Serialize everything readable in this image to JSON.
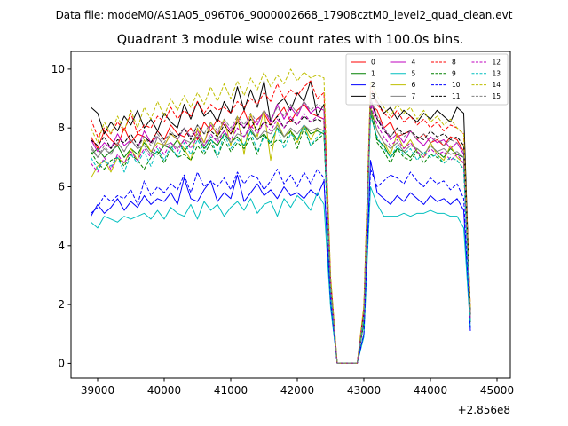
{
  "chart_data": {
    "type": "line",
    "suptitle": "Data file: modeM0/AS1A05_096T06_9000002668_17908cztM0_level2_quad_clean.evt",
    "title": "Quadrant 3 module wise count rates with 100.0s bins.",
    "xlabel": "",
    "ylabel": "",
    "x_offset_label": "+2.856e8",
    "xlim": [
      38600,
      45200
    ],
    "ylim": [
      -0.5,
      10.6
    ],
    "xticks": [
      39000,
      40000,
      41000,
      42000,
      43000,
      44000,
      45000
    ],
    "xtick_labels": [
      "39000",
      "40000",
      "41000",
      "42000",
      "43000",
      "44000",
      "45000"
    ],
    "yticks": [
      0,
      2,
      4,
      6,
      8,
      10
    ],
    "ytick_labels": [
      "0",
      "2",
      "4",
      "6",
      "8",
      "10"
    ],
    "grid": false,
    "legend": {
      "location": "upper-right",
      "columns": 4
    },
    "x_start": 38900,
    "x_step": 100,
    "series": [
      {
        "name": "0",
        "color": "#ff0000",
        "dashed": false,
        "values": [
          7.7,
          7.3,
          7.9,
          7.6,
          7.4,
          8.0,
          7.5,
          7.8,
          7.7,
          7.5,
          7.9,
          7.6,
          8.1,
          7.8,
          7.7,
          8.0,
          7.6,
          8.2,
          7.9,
          8.3,
          8.1,
          7.8,
          8.2,
          8.6,
          8.0,
          8.3,
          8.5,
          8.1,
          8.4,
          8.7,
          8.2,
          8.6,
          8.8,
          8.5,
          8.4,
          8.3,
          2.5,
          0.0,
          0.0,
          0.0,
          0.0,
          1.5,
          8.8,
          8.6,
          8.0,
          8.2,
          7.7,
          7.8,
          7.9,
          7.6,
          7.8,
          7.5,
          7.6,
          7.4,
          7.7,
          7.6,
          7.2,
          1.6
        ]
      },
      {
        "name": "1",
        "color": "#008000",
        "dashed": false,
        "values": [
          7.1,
          7.3,
          7.0,
          7.2,
          7.4,
          7.0,
          7.3,
          7.1,
          7.5,
          7.2,
          7.1,
          7.4,
          7.3,
          7.6,
          7.2,
          7.5,
          7.7,
          7.3,
          7.6,
          7.4,
          7.8,
          7.5,
          7.7,
          7.4,
          7.9,
          7.6,
          7.8,
          7.5,
          8.0,
          7.7,
          7.9,
          7.6,
          8.1,
          7.8,
          7.9,
          7.8,
          2.4,
          0.0,
          0.0,
          0.0,
          0.0,
          1.4,
          8.5,
          7.6,
          7.4,
          7.0,
          7.3,
          7.2,
          7.0,
          7.3,
          7.1,
          7.4,
          7.2,
          7.0,
          7.3,
          7.1,
          7.0,
          1.4
        ]
      },
      {
        "name": "2",
        "color": "#0000ff",
        "dashed": false,
        "values": [
          5.0,
          5.4,
          5.1,
          5.3,
          5.6,
          5.2,
          5.5,
          5.3,
          5.7,
          5.4,
          5.6,
          5.5,
          5.8,
          5.4,
          6.3,
          5.6,
          5.5,
          5.9,
          6.2,
          5.5,
          5.8,
          5.6,
          6.4,
          5.5,
          5.8,
          6.1,
          5.7,
          5.9,
          5.6,
          6.0,
          5.7,
          5.8,
          5.6,
          5.9,
          5.7,
          6.2,
          2.0,
          0.0,
          0.0,
          0.0,
          0.0,
          1.0,
          6.9,
          5.8,
          5.6,
          5.4,
          5.7,
          5.5,
          5.8,
          5.6,
          5.4,
          5.7,
          5.5,
          5.6,
          5.4,
          5.6,
          5.2,
          1.1
        ]
      },
      {
        "name": "3",
        "color": "#000000",
        "dashed": false,
        "values": [
          8.7,
          8.5,
          7.8,
          8.2,
          7.9,
          8.4,
          8.1,
          8.6,
          8.0,
          8.3,
          7.9,
          8.5,
          8.2,
          8.0,
          8.8,
          8.3,
          8.9,
          8.4,
          8.6,
          8.2,
          8.9,
          8.5,
          9.4,
          8.6,
          9.3,
          8.7,
          9.6,
          8.2,
          8.8,
          9.0,
          8.6,
          9.2,
          8.9,
          9.6,
          8.4,
          8.8,
          2.8,
          0.0,
          0.0,
          0.0,
          0.0,
          1.8,
          9.2,
          8.9,
          8.5,
          8.7,
          8.3,
          8.6,
          8.4,
          8.2,
          8.5,
          8.3,
          8.6,
          8.4,
          8.2,
          8.7,
          8.5,
          1.7
        ]
      },
      {
        "name": "4",
        "color": "#bf00bf",
        "dashed": false,
        "values": [
          7.6,
          7.2,
          7.5,
          7.3,
          7.8,
          7.4,
          7.6,
          7.3,
          7.9,
          7.5,
          7.7,
          7.4,
          7.8,
          7.6,
          8.0,
          7.7,
          7.9,
          7.5,
          8.1,
          7.8,
          8.2,
          7.9,
          8.3,
          8.0,
          8.4,
          8.1,
          8.6,
          8.2,
          8.8,
          8.3,
          8.7,
          8.4,
          8.9,
          8.5,
          8.7,
          8.6,
          2.6,
          0.0,
          0.0,
          0.0,
          0.0,
          1.6,
          8.9,
          8.3,
          8.0,
          7.6,
          7.8,
          7.5,
          7.9,
          7.6,
          7.4,
          7.7,
          7.5,
          7.6,
          7.3,
          7.5,
          7.1,
          1.5
        ]
      },
      {
        "name": "5",
        "color": "#00bfbf",
        "dashed": false,
        "values": [
          4.8,
          4.6,
          5.0,
          4.9,
          4.8,
          5.0,
          4.9,
          5.0,
          5.1,
          4.9,
          5.2,
          4.9,
          5.3,
          5.1,
          5.0,
          5.4,
          4.9,
          5.5,
          5.2,
          5.4,
          5.0,
          5.3,
          5.5,
          5.2,
          5.6,
          5.1,
          5.4,
          5.5,
          5.0,
          5.6,
          5.3,
          5.7,
          5.5,
          5.2,
          5.8,
          5.4,
          1.9,
          0.0,
          0.0,
          0.0,
          0.0,
          0.9,
          6.0,
          5.4,
          5.0,
          5.0,
          5.0,
          5.1,
          5.0,
          5.1,
          5.1,
          5.2,
          5.1,
          5.1,
          5.0,
          5.0,
          4.6,
          1.2
        ]
      },
      {
        "name": "6",
        "color": "#bfbf00",
        "dashed": false,
        "values": [
          6.3,
          6.7,
          6.9,
          6.5,
          7.0,
          6.8,
          7.3,
          6.9,
          7.6,
          7.2,
          7.5,
          7.4,
          7.8,
          7.6,
          7.3,
          6.9,
          8.0,
          7.5,
          8.2,
          7.7,
          8.3,
          7.4,
          8.4,
          7.1,
          8.5,
          7.7,
          8.6,
          6.9,
          8.2,
          7.7,
          7.9,
          7.5,
          8.1,
          7.6,
          8.0,
          7.9,
          2.6,
          0.0,
          0.0,
          0.0,
          0.0,
          1.5,
          8.7,
          7.9,
          7.5,
          7.1,
          7.8,
          7.3,
          7.6,
          7.2,
          7.0,
          7.5,
          7.1,
          6.9,
          7.4,
          7.0,
          6.8,
          1.6
        ]
      },
      {
        "name": "7",
        "color": "#808080",
        "dashed": false,
        "values": [
          7.4,
          7.0,
          7.3,
          7.1,
          7.5,
          7.2,
          7.6,
          7.3,
          7.4,
          7.1,
          7.7,
          7.4,
          7.5,
          7.3,
          7.6,
          7.5,
          7.8,
          7.4,
          7.7,
          7.6,
          7.9,
          7.5,
          7.8,
          7.7,
          8.0,
          7.6,
          7.9,
          7.8,
          8.1,
          7.7,
          8.0,
          7.8,
          8.1,
          7.9,
          8.0,
          7.9,
          2.5,
          0.0,
          0.0,
          0.0,
          0.0,
          1.6,
          8.6,
          7.9,
          7.5,
          7.3,
          7.5,
          7.2,
          7.4,
          7.3,
          7.1,
          7.4,
          7.2,
          7.3,
          7.1,
          7.2,
          7.0,
          1.5
        ]
      },
      {
        "name": "8",
        "color": "#ff0000",
        "dashed": true,
        "values": [
          8.3,
          7.7,
          8.0,
          7.8,
          8.2,
          7.9,
          8.5,
          7.8,
          8.1,
          8.0,
          8.4,
          8.2,
          8.7,
          8.3,
          8.6,
          8.4,
          8.9,
          8.5,
          8.8,
          8.6,
          8.7,
          8.5,
          8.9,
          8.7,
          9.0,
          8.8,
          9.2,
          8.9,
          9.5,
          9.0,
          9.3,
          9.1,
          9.4,
          9.6,
          9.0,
          9.2,
          2.9,
          0.0,
          0.0,
          0.0,
          0.0,
          1.9,
          9.4,
          8.8,
          8.5,
          8.3,
          8.6,
          8.2,
          8.4,
          8.1,
          8.3,
          8.0,
          8.2,
          7.9,
          8.1,
          8.0,
          7.8,
          1.9
        ]
      },
      {
        "name": "9",
        "color": "#008000",
        "dashed": true,
        "values": [
          7.2,
          6.8,
          6.6,
          6.9,
          7.0,
          6.7,
          7.1,
          6.9,
          6.6,
          7.0,
          7.2,
          6.8,
          7.3,
          7.0,
          7.1,
          6.9,
          7.4,
          7.1,
          7.5,
          7.0,
          7.6,
          7.2,
          7.5,
          7.3,
          7.7,
          7.1,
          7.8,
          7.4,
          7.6,
          7.5,
          7.9,
          7.3,
          8.0,
          7.4,
          7.6,
          7.8,
          2.4,
          0.0,
          0.0,
          0.0,
          0.0,
          1.4,
          8.8,
          7.5,
          7.2,
          6.8,
          7.3,
          7.0,
          6.9,
          7.2,
          6.8,
          7.1,
          7.0,
          6.8,
          7.0,
          6.9,
          6.6,
          1.4
        ]
      },
      {
        "name": "10",
        "color": "#0000ff",
        "dashed": true,
        "values": [
          5.1,
          5.3,
          5.7,
          5.5,
          5.7,
          5.6,
          5.9,
          5.4,
          6.2,
          5.7,
          6.0,
          5.8,
          6.1,
          5.9,
          6.4,
          5.8,
          6.5,
          6.0,
          6.2,
          6.0,
          6.3,
          5.9,
          6.5,
          6.1,
          6.4,
          6.3,
          5.9,
          6.2,
          6.6,
          6.1,
          6.4,
          6.0,
          6.5,
          6.1,
          6.6,
          6.3,
          2.1,
          0.0,
          0.0,
          0.0,
          0.0,
          1.0,
          6.6,
          6.0,
          6.2,
          6.4,
          6.3,
          6.1,
          6.5,
          6.2,
          6.0,
          6.3,
          6.1,
          6.2,
          5.9,
          6.1,
          5.6,
          1.2
        ]
      },
      {
        "name": "11",
        "color": "#000000",
        "dashed": true,
        "values": [
          7.6,
          7.4,
          7.7,
          7.3,
          7.6,
          7.5,
          7.8,
          7.4,
          7.7,
          7.5,
          7.9,
          7.6,
          7.8,
          7.7,
          8.0,
          7.6,
          8.1,
          7.8,
          7.9,
          7.7,
          8.1,
          7.8,
          8.2,
          8.0,
          8.3,
          7.9,
          8.2,
          8.1,
          8.4,
          8.0,
          8.3,
          8.1,
          8.4,
          8.2,
          8.3,
          8.2,
          2.6,
          0.0,
          0.0,
          0.0,
          0.0,
          1.7,
          9.0,
          8.3,
          7.9,
          7.7,
          8.0,
          7.8,
          7.9,
          7.7,
          7.6,
          7.9,
          7.7,
          7.8,
          7.6,
          7.7,
          7.4,
          1.6
        ]
      },
      {
        "name": "12",
        "color": "#bf00bf",
        "dashed": true,
        "values": [
          6.8,
          6.5,
          7.0,
          6.6,
          7.1,
          6.8,
          7.2,
          6.9,
          7.3,
          7.0,
          7.4,
          7.1,
          7.5,
          7.2,
          7.6,
          7.3,
          7.7,
          7.4,
          7.8,
          7.5,
          7.9,
          7.6,
          8.0,
          7.7,
          8.1,
          7.8,
          8.2,
          7.9,
          8.3,
          8.0,
          8.4,
          8.1,
          8.5,
          8.2,
          8.4,
          8.3,
          2.5,
          0.0,
          0.0,
          0.0,
          0.0,
          1.6,
          8.8,
          8.1,
          7.7,
          7.4,
          7.6,
          7.3,
          7.5,
          7.2,
          7.0,
          7.3,
          7.1,
          7.2,
          6.9,
          7.1,
          6.8,
          1.5
        ]
      },
      {
        "name": "13",
        "color": "#00bfbf",
        "dashed": true,
        "values": [
          7.0,
          6.6,
          6.9,
          6.7,
          7.0,
          6.5,
          7.1,
          6.8,
          7.2,
          6.7,
          7.3,
          6.9,
          7.4,
          7.0,
          7.5,
          7.1,
          7.6,
          7.2,
          7.7,
          7.0,
          7.8,
          7.3,
          7.6,
          7.4,
          7.9,
          7.2,
          7.7,
          7.5,
          8.0,
          7.3,
          7.8,
          7.6,
          8.1,
          7.4,
          7.7,
          7.9,
          2.4,
          0.0,
          0.0,
          0.0,
          0.0,
          1.5,
          8.4,
          7.7,
          7.3,
          7.0,
          7.4,
          7.1,
          7.3,
          6.9,
          7.2,
          7.0,
          7.1,
          6.8,
          7.0,
          6.9,
          6.6,
          1.4
        ]
      },
      {
        "name": "14",
        "color": "#bfbf00",
        "dashed": true,
        "values": [
          8.0,
          7.5,
          8.2,
          7.8,
          8.4,
          7.9,
          8.6,
          8.0,
          8.7,
          8.3,
          8.9,
          8.4,
          9.0,
          8.6,
          9.1,
          8.7,
          9.2,
          8.8,
          9.4,
          8.9,
          9.5,
          9.0,
          9.6,
          9.1,
          9.7,
          9.3,
          9.9,
          9.4,
          9.8,
          9.5,
          10.0,
          9.6,
          9.9,
          9.7,
          9.8,
          9.7,
          3.0,
          0.0,
          0.0,
          0.0,
          0.0,
          2.0,
          9.6,
          9.1,
          8.7,
          8.4,
          8.8,
          8.5,
          8.7,
          8.3,
          8.6,
          8.2,
          8.4,
          8.1,
          8.3,
          8.0,
          7.8,
          1.9
        ]
      },
      {
        "name": "15",
        "color": "#808080",
        "dashed": true,
        "values": [
          7.3,
          7.0,
          7.4,
          7.1,
          7.5,
          7.2,
          7.6,
          7.3,
          7.7,
          7.4,
          7.8,
          7.5,
          7.9,
          7.6,
          8.0,
          7.7,
          8.1,
          7.8,
          8.2,
          7.9,
          8.3,
          8.0,
          8.4,
          8.1,
          8.5,
          8.2,
          8.6,
          8.3,
          8.7,
          8.4,
          8.8,
          8.5,
          8.9,
          8.6,
          8.8,
          8.7,
          2.7,
          0.0,
          0.0,
          0.0,
          0.0,
          1.7,
          9.0,
          8.4,
          8.0,
          7.7,
          8.0,
          7.7,
          7.9,
          7.6,
          7.8,
          7.5,
          7.7,
          7.4,
          7.6,
          7.5,
          7.2,
          1.6
        ]
      }
    ]
  }
}
